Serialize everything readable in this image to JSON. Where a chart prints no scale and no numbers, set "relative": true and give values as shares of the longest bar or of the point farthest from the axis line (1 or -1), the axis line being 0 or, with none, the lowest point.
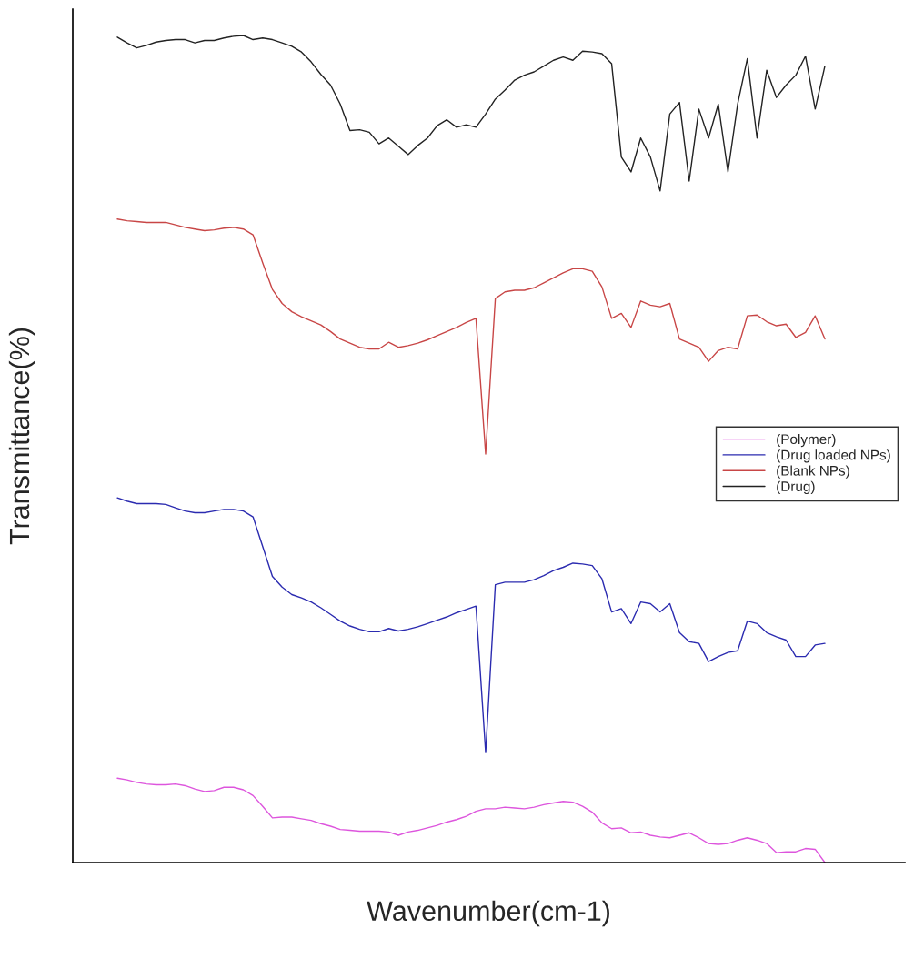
{
  "chart_data": {
    "type": "line",
    "relative": true,
    "xlabel": "Wavenumber(cm-1)",
    "ylabel": "Transmittance(%)",
    "legend": "right",
    "categories": [
      null,
      null,
      null,
      null,
      null,
      null,
      null,
      null,
      null,
      null,
      null,
      null,
      null,
      null,
      null,
      null,
      null,
      null,
      null,
      null,
      null,
      null,
      null,
      null,
      null,
      null,
      null,
      null,
      null,
      null,
      null,
      null,
      null,
      null,
      null,
      null,
      null,
      null,
      null,
      null,
      null,
      null,
      null,
      null,
      null,
      null,
      null,
      null,
      null,
      null,
      null,
      null,
      null,
      null,
      null,
      null,
      null,
      null,
      null,
      null,
      null,
      null,
      null,
      null,
      null,
      null,
      null,
      null,
      null,
      null,
      null,
      null,
      null,
      null
    ],
    "series": [
      {
        "name": "(Polymer)",
        "color": "#dd55dd",
        "values": [
          0.102,
          0.1,
          0.097,
          0.095,
          0.094,
          0.094,
          0.095,
          0.093,
          0.089,
          0.086,
          0.087,
          0.091,
          0.091,
          0.088,
          0.081,
          0.068,
          0.054,
          0.055,
          0.055,
          0.053,
          0.051,
          0.047,
          0.044,
          0.04,
          0.039,
          0.038,
          0.038,
          0.038,
          0.037,
          0.033,
          0.037,
          0.039,
          0.042,
          0.045,
          0.049,
          0.052,
          0.056,
          0.062,
          0.065,
          0.065,
          0.067,
          0.066,
          0.065,
          0.067,
          0.07,
          0.072,
          0.074,
          0.073,
          0.068,
          0.061,
          0.048,
          0.041,
          0.042,
          0.036,
          0.037,
          0.033,
          0.031,
          0.03,
          0.033,
          0.036,
          0.03,
          0.023,
          0.022,
          0.023,
          0.027,
          0.03,
          0.027,
          0.023,
          0.012,
          0.013,
          0.013,
          0.017,
          0.016,
          0.0
        ]
      },
      {
        "name": "(Drug loaded NPs)",
        "color": "#2b2bb0",
        "values": [
          0.441,
          0.437,
          0.434,
          0.434,
          0.434,
          0.433,
          0.429,
          0.425,
          0.423,
          0.423,
          0.425,
          0.427,
          0.427,
          0.425,
          0.418,
          0.382,
          0.346,
          0.333,
          0.324,
          0.32,
          0.315,
          0.308,
          0.3,
          0.292,
          0.286,
          0.282,
          0.279,
          0.279,
          0.283,
          0.28,
          0.282,
          0.285,
          0.289,
          0.293,
          0.297,
          0.302,
          0.306,
          0.31,
          0.133,
          0.336,
          0.339,
          0.339,
          0.339,
          0.342,
          0.347,
          0.353,
          0.357,
          0.362,
          0.361,
          0.359,
          0.343,
          0.303,
          0.307,
          0.289,
          0.315,
          0.313,
          0.303,
          0.313,
          0.278,
          0.267,
          0.265,
          0.243,
          0.249,
          0.254,
          0.256,
          0.292,
          0.289,
          0.278,
          0.273,
          0.269,
          0.249,
          0.249,
          0.263,
          0.265
        ]
      },
      {
        "name": "(Blank NPs)",
        "color": "#c84646",
        "values": [
          0.778,
          0.776,
          0.775,
          0.774,
          0.774,
          0.774,
          0.771,
          0.768,
          0.766,
          0.764,
          0.765,
          0.767,
          0.768,
          0.766,
          0.759,
          0.725,
          0.693,
          0.676,
          0.666,
          0.66,
          0.655,
          0.65,
          0.642,
          0.633,
          0.628,
          0.623,
          0.621,
          0.621,
          0.629,
          0.623,
          0.625,
          0.628,
          0.632,
          0.637,
          0.642,
          0.647,
          0.653,
          0.658,
          0.494,
          0.682,
          0.69,
          0.692,
          0.692,
          0.695,
          0.701,
          0.707,
          0.713,
          0.718,
          0.718,
          0.715,
          0.696,
          0.658,
          0.664,
          0.647,
          0.679,
          0.674,
          0.672,
          0.676,
          0.633,
          0.628,
          0.623,
          0.606,
          0.619,
          0.623,
          0.621,
          0.661,
          0.662,
          0.654,
          0.649,
          0.651,
          0.635,
          0.641,
          0.661,
          0.633
        ]
      },
      {
        "name": "(Drug)",
        "color": "#222222",
        "values": [
          0.998,
          0.991,
          0.985,
          0.988,
          0.992,
          0.994,
          0.995,
          0.995,
          0.991,
          0.994,
          0.994,
          0.997,
          0.999,
          1,
          0.995,
          0.997,
          0.995,
          0.991,
          0.987,
          0.98,
          0.968,
          0.953,
          0.94,
          0.917,
          0.885,
          0.886,
          0.883,
          0.869,
          0.876,
          0.866,
          0.856,
          0.867,
          0.876,
          0.891,
          0.898,
          0.889,
          0.892,
          0.889,
          0.905,
          0.923,
          0.934,
          0.946,
          0.952,
          0.956,
          0.963,
          0.97,
          0.974,
          0.97,
          0.981,
          0.98,
          0.978,
          0.966,
          0.853,
          0.835,
          0.876,
          0.853,
          0.812,
          0.905,
          0.919,
          0.824,
          0.911,
          0.876,
          0.917,
          0.835,
          0.917,
          0.972,
          0.876,
          0.958,
          0.925,
          0.94,
          0.952,
          0.975,
          0.911,
          0.963
        ]
      }
    ]
  }
}
